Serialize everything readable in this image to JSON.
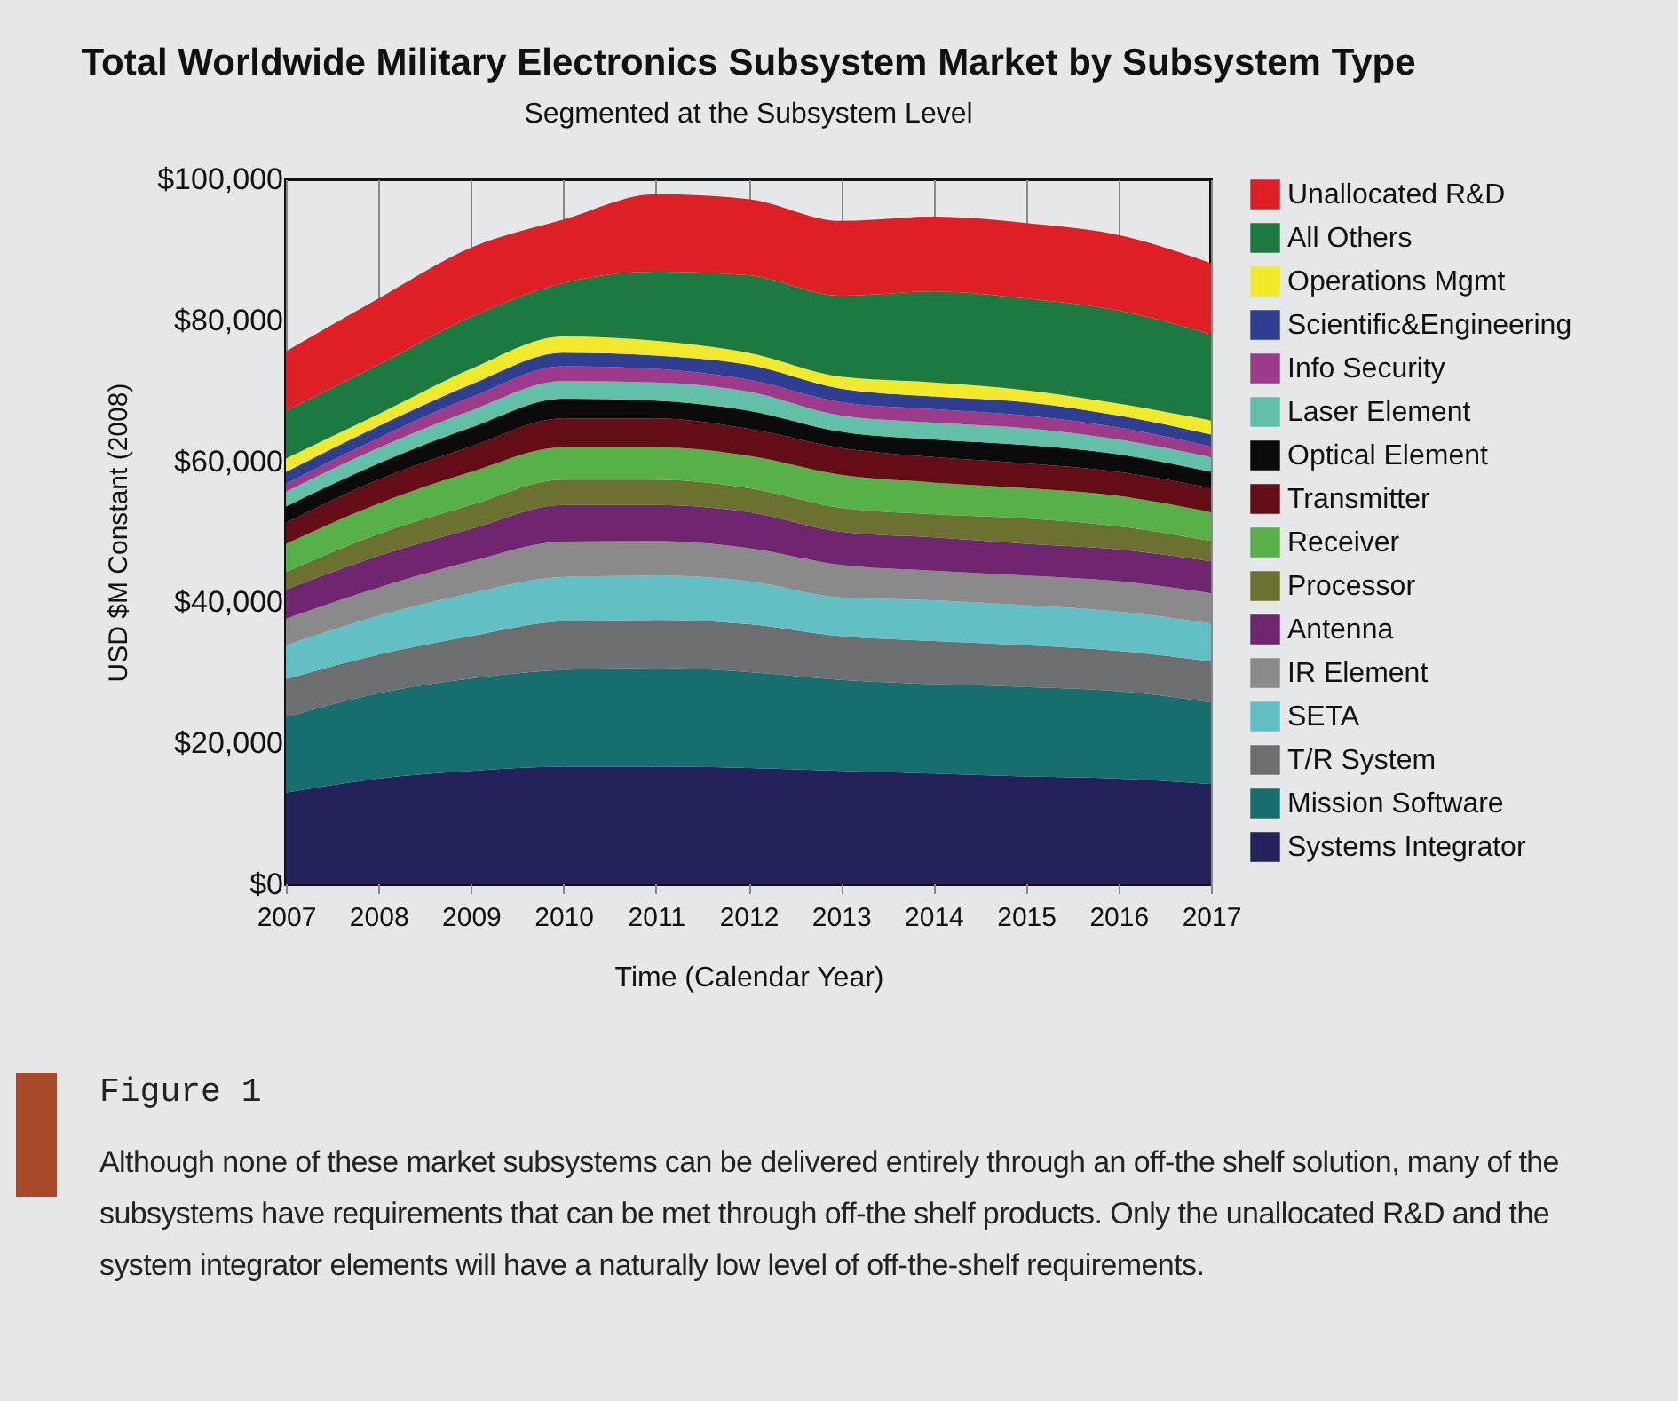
{
  "chart_data": {
    "type": "area",
    "stacked": true,
    "title": "Total Worldwide Military Electronics Subsystem Market by Subsystem Type",
    "subtitle": "Segmented at the Subsystem Level",
    "xlabel": "Time (Calendar Year)",
    "ylabel": "USD $M Constant (2008)",
    "x": [
      2007,
      2008,
      2009,
      2010,
      2011,
      2012,
      2013,
      2014,
      2015,
      2016,
      2017
    ],
    "xlim": [
      2007,
      2017
    ],
    "xticks": [
      2007,
      2008,
      2009,
      2010,
      2011,
      2012,
      2013,
      2014,
      2015,
      2016,
      2017
    ],
    "ylim": [
      0,
      100000
    ],
    "yticks": [
      {
        "value": 0,
        "label": "$0"
      },
      {
        "value": 20000,
        "label": "$20,000"
      },
      {
        "value": 40000,
        "label": "$40,000"
      },
      {
        "value": 60000,
        "label": "$60,000"
      },
      {
        "value": 80000,
        "label": "$80,000"
      },
      {
        "value": 100000,
        "label": "$100,000"
      }
    ],
    "grid": "x",
    "legend": "right",
    "series": [
      {
        "name": "Systems Integrator",
        "color": "#24225a",
        "values": [
          13000,
          15000,
          16100,
          16700,
          16700,
          16500,
          16100,
          15700,
          15300,
          15000,
          14200
        ]
      },
      {
        "name": "Mission Software",
        "color": "#166e6e",
        "values": [
          10700,
          12100,
          13100,
          13700,
          14000,
          13600,
          12900,
          12700,
          12700,
          12400,
          11600
        ]
      },
      {
        "name": "T/R System",
        "color": "#6c6e70",
        "values": [
          5400,
          5500,
          6000,
          6900,
          6800,
          6800,
          6200,
          6100,
          5900,
          5700,
          5800
        ]
      },
      {
        "name": "SETA",
        "color": "#62c0c4",
        "values": [
          4800,
          5500,
          6100,
          6300,
          6300,
          6100,
          5500,
          5800,
          5700,
          5600,
          5400
        ]
      },
      {
        "name": "IR Element",
        "color": "#8a8a8a",
        "values": [
          3800,
          4000,
          4500,
          5000,
          4900,
          4700,
          4600,
          4200,
          4200,
          4300,
          4300
        ]
      },
      {
        "name": "Antenna",
        "color": "#6f2570",
        "values": [
          4100,
          4500,
          4600,
          5200,
          5100,
          5100,
          4700,
          4700,
          4500,
          4500,
          4500
        ]
      },
      {
        "name": "Processor",
        "color": "#6a7131",
        "values": [
          2500,
          3100,
          3400,
          3600,
          3600,
          3400,
          3400,
          3300,
          3600,
          3300,
          2900
        ]
      },
      {
        "name": "Receiver",
        "color": "#58b148",
        "values": [
          4000,
          4300,
          4700,
          4600,
          4600,
          4600,
          4700,
          4500,
          4300,
          4300,
          4100
        ]
      },
      {
        "name": "Transmitter",
        "color": "#640d16",
        "values": [
          3000,
          3400,
          3600,
          4100,
          4100,
          3800,
          3800,
          3600,
          3500,
          3400,
          3400
        ]
      },
      {
        "name": "Optical Element",
        "color": "#0a0a0a",
        "values": [
          2300,
          2300,
          2700,
          2800,
          2500,
          2600,
          2300,
          2500,
          2600,
          2500,
          2300
        ]
      },
      {
        "name": "Laser Element",
        "color": "#62bfa8",
        "values": [
          2100,
          2200,
          2400,
          2500,
          2600,
          2700,
          2300,
          2400,
          2400,
          2100,
          2100
        ]
      },
      {
        "name": "Info Security",
        "color": "#9e3a8a",
        "values": [
          1100,
          1400,
          1900,
          2100,
          1900,
          1700,
          1900,
          1900,
          1800,
          1700,
          1500
        ]
      },
      {
        "name": "Scientific&Engineering",
        "color": "#2e3f93",
        "values": [
          1700,
          1700,
          1800,
          1900,
          1900,
          2100,
          1900,
          1800,
          1900,
          1700,
          1700
        ]
      },
      {
        "name": "Operations Mgmt",
        "color": "#f2e92b",
        "values": [
          1900,
          1700,
          2200,
          2300,
          2100,
          1700,
          1700,
          2000,
          1700,
          1700,
          2000
        ]
      },
      {
        "name": "All Others",
        "color": "#1c7a40",
        "values": [
          6800,
          7000,
          7400,
          7600,
          9800,
          11000,
          11500,
          12900,
          13000,
          13200,
          12200
        ]
      },
      {
        "name": "Unallocated R&D",
        "color": "#df1f26",
        "values": [
          8400,
          9400,
          9800,
          9000,
          11000,
          10800,
          10600,
          10600,
          10700,
          10700,
          10100
        ]
      }
    ],
    "annotations": [
      "Figure 1",
      "Although none of these market subsystems can be delivered entirely through an off-the shelf solution, many of the subsystems have requirements that can be met through off-the shelf products. Only the unallocated R&D and the system integrator elements will have a naturally low level of off-the-shelf requirements."
    ]
  }
}
